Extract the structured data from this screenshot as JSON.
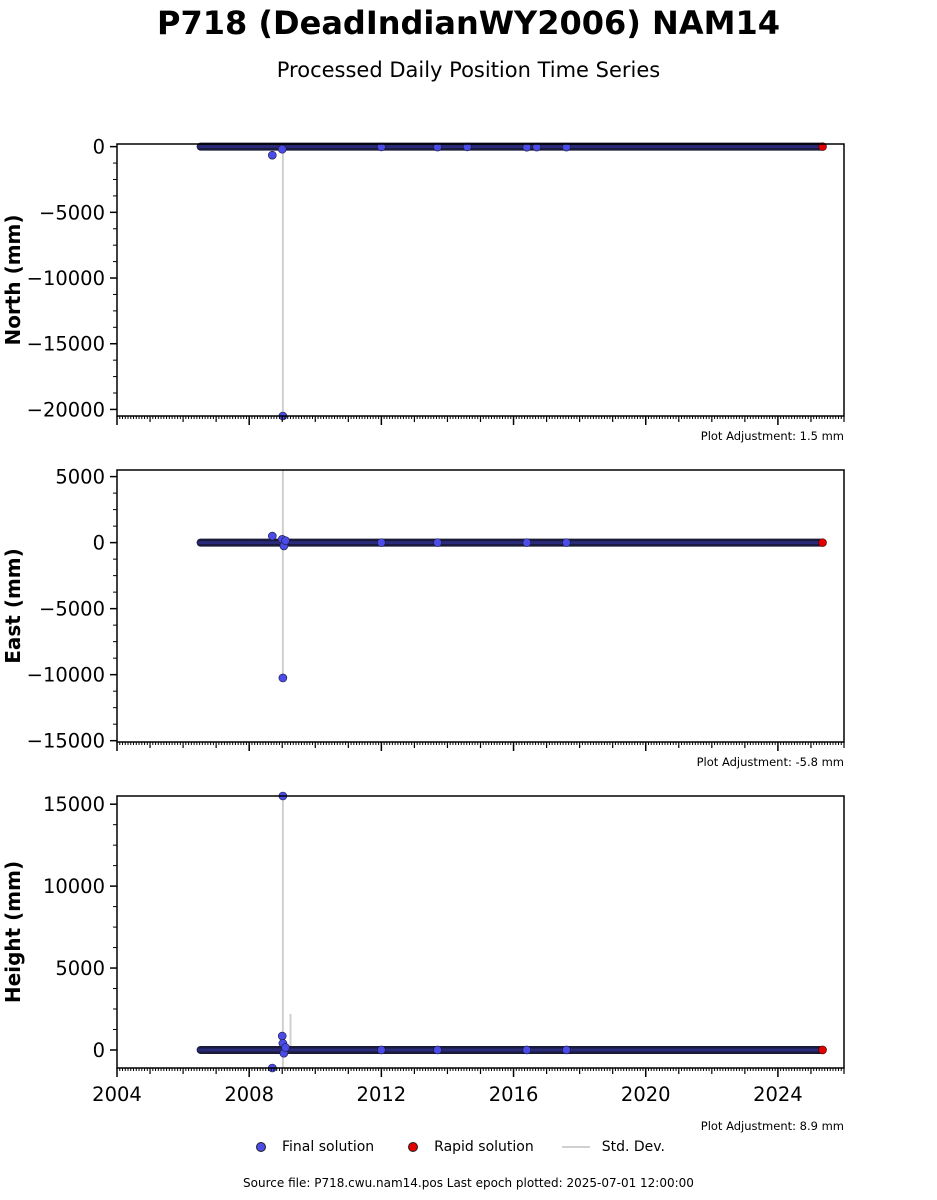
{
  "header": {
    "title": "P718 (DeadIndianWY2006) NAM14",
    "subtitle": "Processed Daily Position Time Series"
  },
  "colors": {
    "final": "#4b4be8",
    "rapid": "#e00000",
    "stddev": "#d0d0d0",
    "edge": "#1a1a3a"
  },
  "legend": {
    "final_label": "Final solution",
    "rapid_label": "Rapid solution",
    "stddev_label": "Std. Dev."
  },
  "footer": {
    "source": "Source file: P718.cwu.nam14.pos  Last epoch plotted: 2025-07-01 12:00:00"
  },
  "chart_data": [
    {
      "type": "scatter",
      "ylabel": "North (mm)",
      "plot_adjustment": "Plot Adjustment: 1.5 mm",
      "xlim": [
        2004.0,
        2026.0
      ],
      "ylim": [
        -20500,
        200
      ],
      "yticks": [
        0,
        -5000,
        -10000,
        -15000,
        -20000
      ],
      "ytick_labels": [
        "0",
        "−5000",
        "−10000",
        "−15000",
        "−20000"
      ],
      "final_range": [
        2006.5,
        2025.3
      ],
      "final_baseline": 0,
      "rapid_x": [
        2025.35
      ],
      "rapid_y": [
        0
      ],
      "outliers": [
        {
          "x": 2008.7,
          "y": -650
        },
        {
          "x": 2009.0,
          "y": -200
        },
        {
          "x": 2009.02,
          "y": -20500
        },
        {
          "x": 2012.0,
          "y": -20
        },
        {
          "x": 2013.7,
          "y": -30
        },
        {
          "x": 2014.6,
          "y": -20
        },
        {
          "x": 2016.4,
          "y": -40
        },
        {
          "x": 2016.7,
          "y": -30
        },
        {
          "x": 2017.6,
          "y": -30
        }
      ],
      "stddev_lines": [
        {
          "x": 2009.02,
          "y0": -20500,
          "y1": 200
        }
      ]
    },
    {
      "type": "scatter",
      "ylabel": "East (mm)",
      "plot_adjustment": "Plot Adjustment: -5.8 mm",
      "xlim": [
        2004.0,
        2026.0
      ],
      "ylim": [
        -15100,
        5500
      ],
      "yticks": [
        5000,
        0,
        -5000,
        -10000,
        -15000
      ],
      "ytick_labels": [
        "5000",
        "0",
        "−5000",
        "−10000",
        "−15000"
      ],
      "final_range": [
        2006.5,
        2025.3
      ],
      "final_baseline": 0,
      "rapid_x": [
        2025.35
      ],
      "rapid_y": [
        0
      ],
      "outliers": [
        {
          "x": 2008.7,
          "y": 500
        },
        {
          "x": 2009.0,
          "y": 250
        },
        {
          "x": 2009.05,
          "y": -250
        },
        {
          "x": 2009.1,
          "y": 150
        },
        {
          "x": 2009.02,
          "y": -10250
        },
        {
          "x": 2012.0,
          "y": 0
        },
        {
          "x": 2013.7,
          "y": 0
        },
        {
          "x": 2016.4,
          "y": 0
        },
        {
          "x": 2017.6,
          "y": 0
        }
      ],
      "stddev_lines": [
        {
          "x": 2009.02,
          "y0": -10250,
          "y1": 5500
        }
      ]
    },
    {
      "type": "scatter",
      "ylabel": "Height (mm)",
      "plot_adjustment": "Plot Adjustment: 8.9 mm",
      "xlim": [
        2004.0,
        2026.0
      ],
      "ylim": [
        -1100,
        15500
      ],
      "yticks": [
        15000,
        10000,
        5000,
        0
      ],
      "ytick_labels": [
        "15000",
        "10000",
        "5000",
        "0"
      ],
      "xticks": [
        2004,
        2008,
        2012,
        2016,
        2020,
        2024
      ],
      "xtick_labels": [
        "2004",
        "2008",
        "2012",
        "2016",
        "2020",
        "2024"
      ],
      "final_range": [
        2006.5,
        2025.3
      ],
      "final_baseline": 0,
      "rapid_x": [
        2025.35
      ],
      "rapid_y": [
        0
      ],
      "outliers": [
        {
          "x": 2008.7,
          "y": -1100
        },
        {
          "x": 2009.0,
          "y": 850
        },
        {
          "x": 2009.02,
          "y": 400
        },
        {
          "x": 2009.05,
          "y": -200
        },
        {
          "x": 2009.1,
          "y": 150
        },
        {
          "x": 2009.02,
          "y": 15500
        },
        {
          "x": 2012.0,
          "y": 0
        },
        {
          "x": 2013.7,
          "y": 0
        },
        {
          "x": 2016.4,
          "y": 0
        },
        {
          "x": 2017.6,
          "y": 0
        }
      ],
      "stddev_lines": [
        {
          "x": 2009.02,
          "y0": -1100,
          "y1": 15500
        },
        {
          "x": 2009.25,
          "y0": -200,
          "y1": 2200
        }
      ]
    }
  ]
}
